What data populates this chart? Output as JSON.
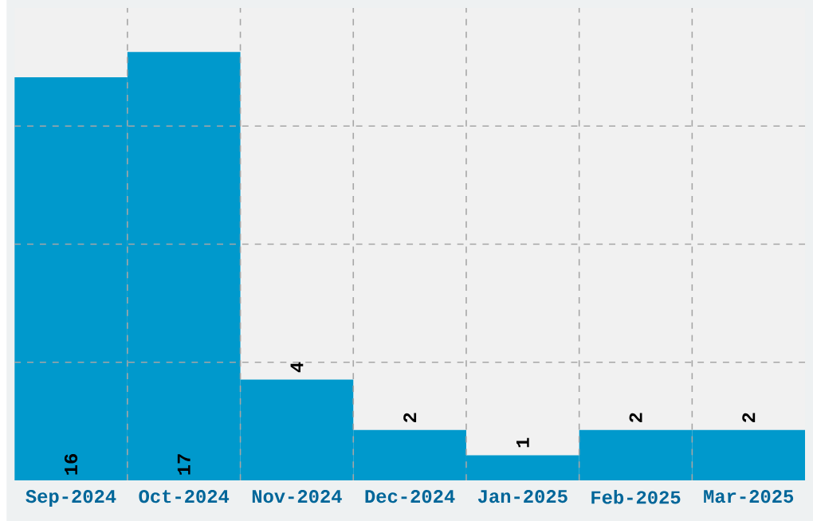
{
  "chart_data": {
    "type": "bar",
    "categories": [
      "Sep-2024",
      "Oct-2024",
      "Nov-2024",
      "Dec-2024",
      "Jan-2025",
      "Feb-2025",
      "Mar-2025"
    ],
    "values": [
      16,
      17,
      4,
      2,
      1,
      2,
      2
    ],
    "color": "#0099cc",
    "ylim": [
      0,
      18.75
    ],
    "yticks": [
      {
        "value": 4.6875,
        "label": null
      },
      {
        "value": 9.375,
        "label": null
      },
      {
        "value": 14.0625,
        "label": null
      }
    ],
    "tick_labels": "x",
    "grid": true,
    "data_labels": true
  }
}
